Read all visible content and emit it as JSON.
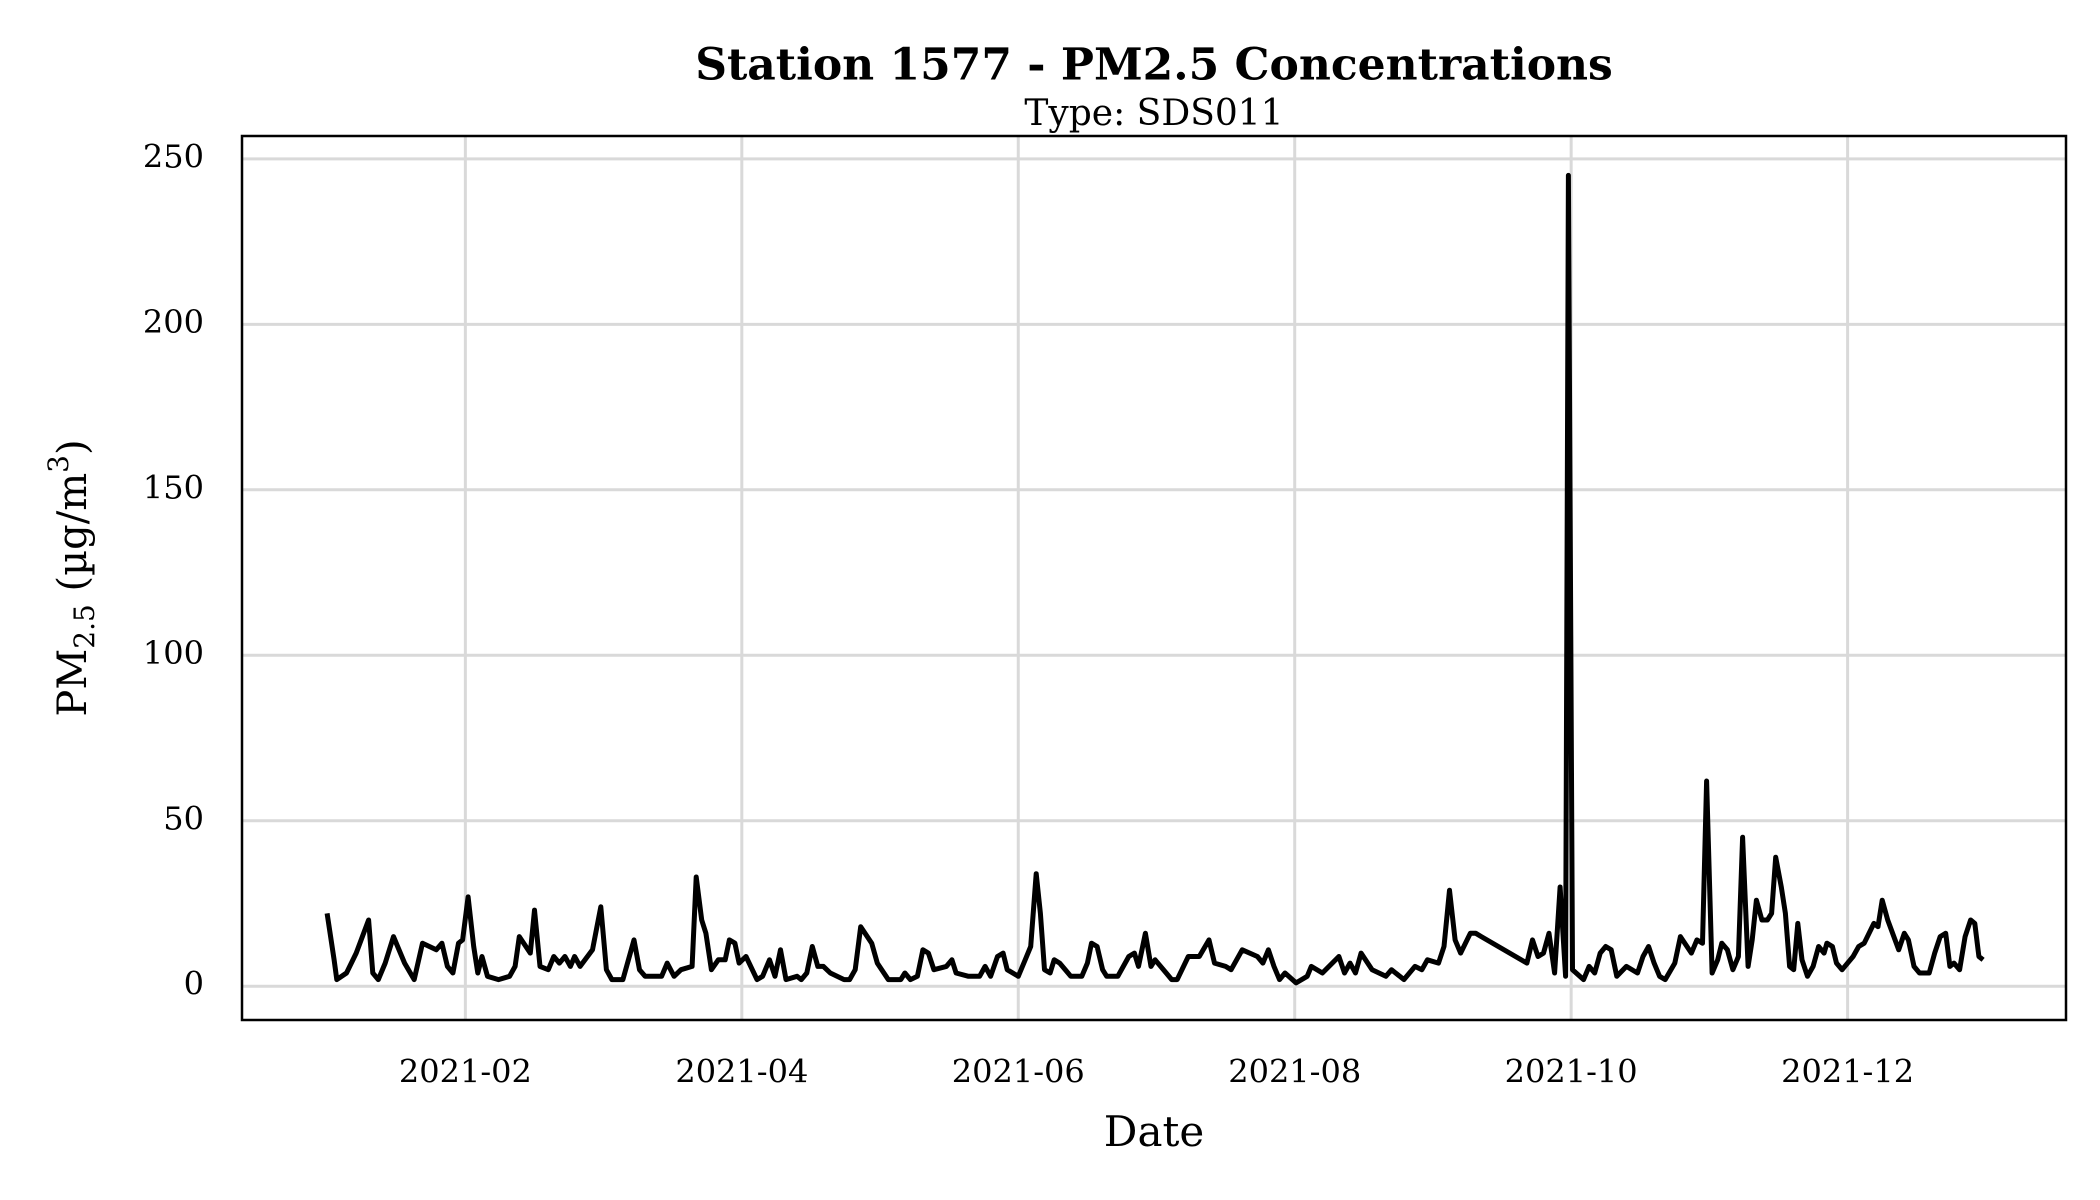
{
  "chart_data": {
    "type": "line",
    "title": "Station 1577 - PM2.5 Concentrations",
    "subtitle": "Type: SDS011",
    "xlabel": "Date",
    "ylabel": [
      "PM",
      "2.5",
      " (µg/m",
      "3",
      ")"
    ],
    "color": "#000000",
    "grid": true,
    "xlim": [
      0.384,
      13.58
    ],
    "ylim": [
      -10.2,
      256.9
    ],
    "xticks": [
      {
        "value": 2,
        "label": "2021-02"
      },
      {
        "value": 4,
        "label": "2021-04"
      },
      {
        "value": 6,
        "label": "2021-06"
      },
      {
        "value": 8,
        "label": "2021-08"
      },
      {
        "value": 10,
        "label": "2021-10"
      },
      {
        "value": 12,
        "label": "2021-12"
      }
    ],
    "yticks": [
      0,
      50,
      100,
      150,
      200,
      250
    ],
    "x": [
      1.0,
      1.05,
      1.07,
      1.14,
      1.21,
      1.3,
      1.33,
      1.37,
      1.42,
      1.48,
      1.56,
      1.63,
      1.69,
      1.79,
      1.83,
      1.87,
      1.91,
      1.95,
      1.98,
      2.02,
      2.06,
      2.09,
      2.12,
      2.16,
      2.24,
      2.32,
      2.36,
      2.39,
      2.47,
      2.5,
      2.54,
      2.6,
      2.64,
      2.68,
      2.72,
      2.76,
      2.79,
      2.83,
      2.92,
      2.98,
      3.02,
      3.06,
      3.14,
      3.22,
      3.26,
      3.3,
      3.42,
      3.46,
      3.51,
      3.56,
      3.64,
      3.67,
      3.71,
      3.74,
      3.78,
      3.83,
      3.88,
      3.91,
      3.95,
      3.98,
      4.03,
      4.11,
      4.15,
      4.2,
      4.24,
      4.28,
      4.32,
      4.4,
      4.43,
      4.47,
      4.51,
      4.55,
      4.59,
      4.64,
      4.74,
      4.78,
      4.82,
      4.86,
      4.94,
      4.98,
      5.06,
      5.15,
      5.18,
      5.22,
      5.27,
      5.31,
      5.35,
      5.39,
      5.48,
      5.52,
      5.55,
      5.64,
      5.72,
      5.76,
      5.8,
      5.85,
      5.89,
      5.92,
      6.0,
      6.05,
      6.09,
      6.13,
      6.16,
      6.19,
      6.23,
      6.26,
      6.3,
      6.34,
      6.38,
      6.46,
      6.5,
      6.53,
      6.57,
      6.61,
      6.64,
      6.72,
      6.8,
      6.84,
      6.87,
      6.92,
      6.96,
      6.99,
      7.07,
      7.11,
      7.15,
      7.23,
      7.31,
      7.38,
      7.42,
      7.5,
      7.54,
      7.62,
      7.73,
      7.77,
      7.81,
      7.85,
      7.89,
      7.93,
      8.01,
      8.09,
      8.12,
      8.2,
      8.32,
      8.36,
      8.4,
      8.44,
      8.48,
      8.56,
      8.66,
      8.7,
      8.79,
      8.87,
      8.92,
      8.96,
      9.04,
      9.08,
      9.12,
      9.16,
      9.2,
      9.27,
      9.31,
      9.35,
      9.68,
      9.72,
      9.76,
      9.8,
      9.84,
      9.88,
      9.92,
      9.96,
      9.98,
      10.01,
      10.09,
      10.13,
      10.17,
      10.21,
      10.25,
      10.29,
      10.33,
      10.4,
      10.48,
      10.52,
      10.56,
      10.6,
      10.64,
      10.68,
      10.75,
      10.79,
      10.87,
      10.91,
      10.95,
      10.98,
      11.02,
      11.06,
      11.09,
      11.13,
      11.17,
      11.21,
      11.24,
      11.28,
      11.31,
      11.34,
      11.38,
      11.42,
      11.45,
      11.48,
      11.52,
      11.55,
      11.58,
      11.61,
      11.64,
      11.67,
      11.71,
      11.75,
      11.79,
      11.83,
      11.85,
      11.89,
      11.92,
      11.96,
      12.04,
      12.08,
      12.12,
      12.19,
      12.22,
      12.25,
      12.29,
      12.37,
      12.41,
      12.44,
      12.48,
      12.52,
      12.59,
      12.63,
      12.67,
      12.71,
      12.74,
      12.77,
      12.81,
      12.85,
      12.89,
      12.92,
      12.95,
      12.98
    ],
    "values": [
      22,
      8,
      2,
      4,
      10,
      20,
      4,
      2,
      7,
      15,
      7,
      2,
      13,
      11,
      13,
      6,
      4,
      13,
      14,
      27,
      12,
      4,
      9,
      3,
      2,
      3,
      6,
      15,
      10,
      23,
      6,
      5,
      9,
      7,
      9,
      6,
      9,
      6,
      11,
      24,
      5,
      2,
      2,
      14,
      5,
      3,
      3,
      7,
      3,
      5,
      6,
      33,
      20,
      16,
      5,
      8,
      8,
      14,
      13,
      7,
      9,
      2,
      3,
      8,
      3,
      11,
      2,
      3,
      2,
      4,
      12,
      6,
      6,
      4,
      2,
      2,
      5,
      18,
      13,
      7,
      2,
      2,
      4,
      2,
      3,
      11,
      10,
      5,
      6,
      8,
      4,
      3,
      3,
      6,
      3,
      9,
      10,
      5,
      3,
      8,
      12,
      34,
      22,
      5,
      4,
      8,
      7,
      5,
      3,
      3,
      7,
      13,
      12,
      5,
      3,
      3,
      9,
      10,
      6,
      16,
      6,
      8,
      4,
      2,
      2,
      9,
      9,
      14,
      7,
      6,
      5,
      11,
      9,
      7,
      11,
      6,
      2,
      4,
      1,
      3,
      6,
      4,
      9,
      4,
      7,
      4,
      10,
      5,
      3,
      5,
      2,
      6,
      5,
      8,
      7,
      12,
      29,
      14,
      10,
      16,
      16,
      15,
      7,
      14,
      9,
      10,
      16,
      4,
      30,
      3,
      245,
      5,
      2,
      6,
      4,
      10,
      12,
      11,
      3,
      6,
      4,
      9,
      12,
      7,
      3,
      2,
      7,
      15,
      10,
      14,
      13,
      62,
      4,
      8,
      13,
      11,
      5,
      9,
      45,
      6,
      14,
      26,
      20,
      20,
      22,
      39,
      30,
      22,
      6,
      5,
      19,
      8,
      3,
      6,
      12,
      10,
      13,
      12,
      7,
      5,
      9,
      12,
      13,
      19,
      18,
      26,
      20,
      11,
      16,
      14,
      6,
      4,
      4,
      10,
      15,
      16,
      6,
      7,
      5,
      15,
      20,
      19,
      9,
      8
    ]
  }
}
